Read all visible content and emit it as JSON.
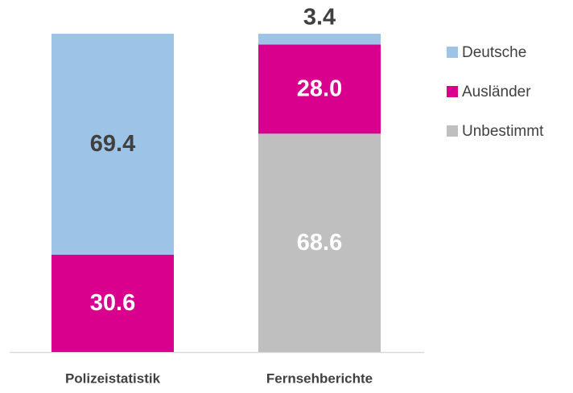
{
  "chart_data": {
    "type": "stacked_bar",
    "categories": [
      "Polizeistatistik",
      "Fernsehberichte"
    ],
    "series": [
      {
        "name": "Deutsche",
        "color": "#9dc3e6",
        "values": [
          69.4,
          3.4
        ],
        "value_labels": [
          "69.4",
          "3.4"
        ]
      },
      {
        "name": "Ausländer",
        "color": "#d9008d",
        "values": [
          30.6,
          28.0
        ],
        "value_labels": [
          "30.6",
          "28.0"
        ]
      },
      {
        "name": "Unbestimmt",
        "color": "#bfbfbf",
        "values": [
          null,
          68.6
        ],
        "value_labels": [
          null,
          "68.6"
        ]
      }
    ],
    "ylim": [
      0,
      100
    ],
    "legend": "right"
  }
}
